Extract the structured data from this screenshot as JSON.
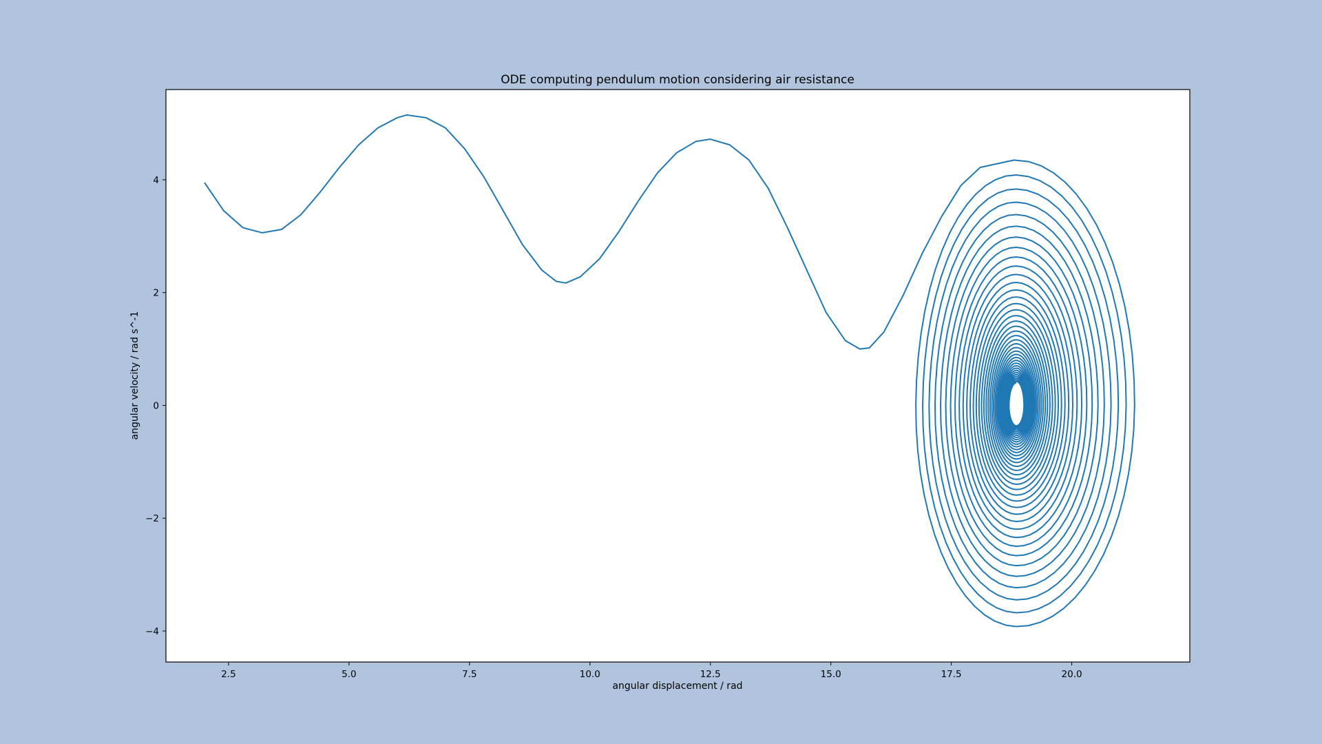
{
  "chart_data": {
    "type": "line",
    "title": "ODE computing pendulum motion considering air resistance",
    "xlabel": "angular displacement / rad",
    "ylabel": "angular velocity / rad s^-1",
    "xlim": [
      1.2,
      22.45
    ],
    "ylim": [
      -4.55,
      5.6
    ],
    "xticks": [
      2.5,
      5.0,
      7.5,
      10.0,
      12.5,
      15.0,
      17.5,
      20.0
    ],
    "xtick_labels": [
      "2.5",
      "5.0",
      "7.5",
      "10.0",
      "12.5",
      "15.0",
      "17.5",
      "20.0"
    ],
    "yticks": [
      -4,
      -2,
      0,
      2,
      4
    ],
    "ytick_labels": [
      "−4",
      "−2",
      "0",
      "2",
      "4"
    ],
    "grid": false,
    "legend": "none",
    "series": [
      {
        "line_color": "#1f77b4",
        "points": [
          [
            2.0,
            3.95
          ],
          [
            2.4,
            3.45
          ],
          [
            2.8,
            3.15
          ],
          [
            3.2,
            3.06
          ],
          [
            3.6,
            3.12
          ],
          [
            4.0,
            3.38
          ],
          [
            4.4,
            3.78
          ],
          [
            4.8,
            4.22
          ],
          [
            5.2,
            4.62
          ],
          [
            5.6,
            4.92
          ],
          [
            6.0,
            5.1
          ],
          [
            6.2,
            5.15
          ],
          [
            6.6,
            5.1
          ],
          [
            7.0,
            4.92
          ],
          [
            7.4,
            4.55
          ],
          [
            7.8,
            4.05
          ],
          [
            8.2,
            3.45
          ],
          [
            8.6,
            2.85
          ],
          [
            9.0,
            2.4
          ],
          [
            9.3,
            2.2
          ],
          [
            9.5,
            2.17
          ],
          [
            9.8,
            2.28
          ],
          [
            10.2,
            2.6
          ],
          [
            10.6,
            3.08
          ],
          [
            11.0,
            3.62
          ],
          [
            11.4,
            4.12
          ],
          [
            11.8,
            4.48
          ],
          [
            12.2,
            4.68
          ],
          [
            12.5,
            4.72
          ],
          [
            12.9,
            4.62
          ],
          [
            13.3,
            4.35
          ],
          [
            13.7,
            3.85
          ],
          [
            14.1,
            3.15
          ],
          [
            14.5,
            2.4
          ],
          [
            14.9,
            1.65
          ],
          [
            15.3,
            1.15
          ],
          [
            15.6,
            1.0
          ],
          [
            15.8,
            1.02
          ],
          [
            16.1,
            1.3
          ],
          [
            16.5,
            1.95
          ],
          [
            16.9,
            2.7
          ],
          [
            17.3,
            3.35
          ],
          [
            17.7,
            3.9
          ],
          [
            18.1,
            4.22
          ],
          [
            18.8,
            4.35
          ]
        ],
        "spiral": {
          "center": [
            18.85,
            0.0
          ],
          "start": {
            "x_left": 16.65,
            "x_right": 21.35,
            "y_top": 4.35,
            "y_bottom": -4.05
          },
          "end": {
            "x_left": 18.7,
            "x_right": 19.0,
            "y_top": 0.4,
            "y_bottom": -0.35
          },
          "loops": 38
        }
      }
    ]
  }
}
